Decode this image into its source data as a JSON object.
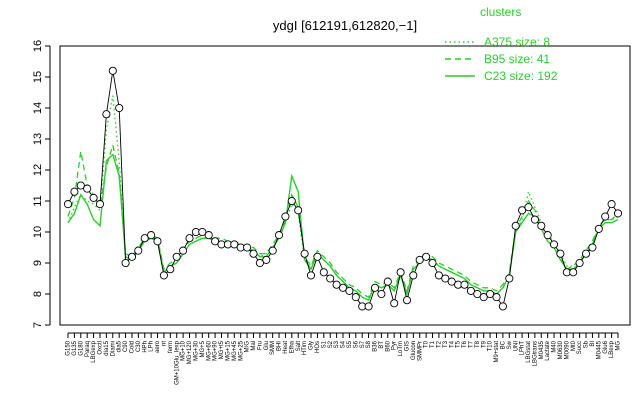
{
  "chart_data": {
    "type": "line",
    "title": "ydgI [612191,612820,−1]",
    "xlabel": "",
    "ylabel": "",
    "ylim": [
      7,
      16
    ],
    "yticks": [
      7,
      8,
      9,
      10,
      11,
      12,
      13,
      14,
      15,
      16
    ],
    "grid": false,
    "legend_position": "top-right",
    "legend_title": "clusters",
    "colors": {
      "series": "#2ecc2e",
      "points": "#000000",
      "point_fill": "#ffffff"
    },
    "categories": [
      "G150",
      "G135",
      "G180",
      "Paraq",
      "LBGexp",
      "Oxctl",
      "dia15",
      "Diami",
      "dia5",
      "C90",
      "Cold",
      "C30",
      "HPh",
      "LPh",
      "aero",
      "nt",
      "ferm",
      "GM+10Glu_Iexp",
      "MG+10",
      "MG+120",
      "MG+30",
      "MG+5",
      "MG+60",
      "MG+90",
      "MG+t5",
      "MG+15",
      "MG+45",
      "MG+25",
      "M/G",
      "Mal",
      "Fru",
      "Glu",
      "SMM",
      "BHI",
      "Heat",
      "Efha",
      "Salt",
      "HTim",
      "Gly",
      "HOs",
      "S1",
      "S2",
      "S3",
      "S4",
      "S5",
      "S6",
      "S7",
      "S8",
      "B36",
      "BT",
      "B60",
      "Pyr",
      "LoTm",
      "GIS",
      "Glucon",
      "SMMPr",
      "T0",
      "T1",
      "T2",
      "T3",
      "T4",
      "T5",
      "T6",
      "T7",
      "T8",
      "T9",
      "T10",
      "M9+stat",
      "BC",
      "Sw",
      "UNI",
      "LPhT",
      "LBGstat",
      "LBGtrans",
      "M0435",
      "Lactate",
      "M40",
      "M0630",
      "M0090",
      "Mt0",
      "Succ",
      "Sb",
      "BI",
      "M0445",
      "Glu6",
      "LBexp",
      "MG"
    ],
    "series": [
      {
        "name": "A375 size: 8",
        "style": "dotted",
        "values": [
          10.3,
          10.8,
          11.2,
          11.0,
          10.9,
          10.7,
          13.3,
          14.4,
          12.3,
          9.1,
          9.1,
          9.5,
          9.7,
          9.8,
          9.8,
          8.7,
          8.9,
          9.0,
          9.3,
          9.6,
          9.7,
          9.8,
          9.8,
          9.8,
          9.7,
          9.7,
          9.6,
          9.5,
          9.5,
          9.4,
          9.2,
          9.3,
          9.5,
          9.8,
          10.3,
          10.9,
          10.6,
          9.1,
          8.8,
          9.3,
          9.1,
          8.9,
          8.6,
          8.4,
          8.2,
          8.1,
          7.9,
          7.8,
          8.3,
          8.2,
          8.3,
          8.1,
          8.6,
          8.0,
          8.8,
          9.0,
          9.2,
          9.1,
          8.9,
          8.8,
          8.7,
          8.6,
          8.5,
          8.3,
          8.2,
          8.1,
          8.1,
          8.0,
          8.2,
          8.6,
          10.0,
          10.4,
          11.3,
          10.8,
          10.3,
          9.9,
          9.7,
          9.3,
          8.9,
          8.9,
          9.1,
          9.3,
          9.6,
          10.2,
          10.4,
          10.4,
          10.5
        ]
      },
      {
        "name": "B95 size: 41",
        "style": "dashed",
        "values": [
          10.5,
          11.1,
          12.6,
          11.5,
          11.2,
          10.8,
          12.1,
          12.8,
          11.9,
          9.3,
          9.2,
          9.5,
          9.8,
          9.9,
          9.8,
          8.8,
          9.0,
          9.1,
          9.4,
          9.7,
          9.8,
          9.9,
          9.9,
          9.8,
          9.8,
          9.7,
          9.7,
          9.6,
          9.5,
          9.5,
          9.3,
          9.3,
          9.6,
          9.9,
          10.4,
          11.2,
          10.8,
          9.2,
          8.9,
          9.4,
          9.2,
          9.0,
          8.7,
          8.5,
          8.3,
          8.2,
          8.0,
          7.9,
          8.4,
          8.3,
          8.4,
          8.2,
          8.7,
          8.1,
          8.9,
          9.1,
          9.3,
          9.2,
          9.0,
          8.9,
          8.8,
          8.7,
          8.6,
          8.4,
          8.3,
          8.2,
          8.2,
          8.1,
          8.3,
          8.7,
          10.1,
          10.5,
          11.0,
          10.7,
          10.2,
          9.8,
          9.6,
          9.2,
          8.8,
          8.9,
          9.1,
          9.4,
          9.7,
          10.2,
          10.4,
          10.4,
          10.6
        ]
      },
      {
        "name": "C23 size: 192",
        "style": "solid",
        "values": [
          10.3,
          10.6,
          11.2,
          10.9,
          10.4,
          10.2,
          12.3,
          12.5,
          11.8,
          9.2,
          9.1,
          9.4,
          9.7,
          9.8,
          9.7,
          8.7,
          8.9,
          9.0,
          9.3,
          9.6,
          9.7,
          9.8,
          9.8,
          9.7,
          9.7,
          9.6,
          9.6,
          9.5,
          9.4,
          9.4,
          9.2,
          9.2,
          9.5,
          9.8,
          10.3,
          11.8,
          11.3,
          9.1,
          8.8,
          9.3,
          9.1,
          8.9,
          8.6,
          8.4,
          8.2,
          8.1,
          7.9,
          7.8,
          8.3,
          8.2,
          8.3,
          8.1,
          8.6,
          8.0,
          8.8,
          9.0,
          9.2,
          9.1,
          8.9,
          8.8,
          8.7,
          8.6,
          8.5,
          8.3,
          8.2,
          8.1,
          8.1,
          8.0,
          8.2,
          8.6,
          10.0,
          10.3,
          10.6,
          10.5,
          10.1,
          9.7,
          9.5,
          9.1,
          8.8,
          8.8,
          9.0,
          9.3,
          9.6,
          10.1,
          10.3,
          10.3,
          10.4
        ]
      }
    ],
    "points": {
      "name": "ydgI",
      "values": [
        10.9,
        11.3,
        11.5,
        11.4,
        11.1,
        10.9,
        13.8,
        15.2,
        14.0,
        9.0,
        9.2,
        9.4,
        9.8,
        9.9,
        9.7,
        8.6,
        8.8,
        9.2,
        9.4,
        9.8,
        10.0,
        10.0,
        9.9,
        9.7,
        9.6,
        9.6,
        9.6,
        9.5,
        9.5,
        9.3,
        9.0,
        9.1,
        9.4,
        9.9,
        10.5,
        11.0,
        10.7,
        9.3,
        8.6,
        9.2,
        8.7,
        8.5,
        8.3,
        8.2,
        8.1,
        7.9,
        7.6,
        7.6,
        8.2,
        8.0,
        8.4,
        7.7,
        8.7,
        7.8,
        8.6,
        9.1,
        9.2,
        9.0,
        8.6,
        8.5,
        8.4,
        8.3,
        8.3,
        8.1,
        8.0,
        7.9,
        8.0,
        7.9,
        7.6,
        8.5,
        10.2,
        10.7,
        10.8,
        10.4,
        10.2,
        9.9,
        9.6,
        9.3,
        8.7,
        8.7,
        9.0,
        9.3,
        9.5,
        10.1,
        10.5,
        10.9,
        10.6
      ]
    }
  }
}
